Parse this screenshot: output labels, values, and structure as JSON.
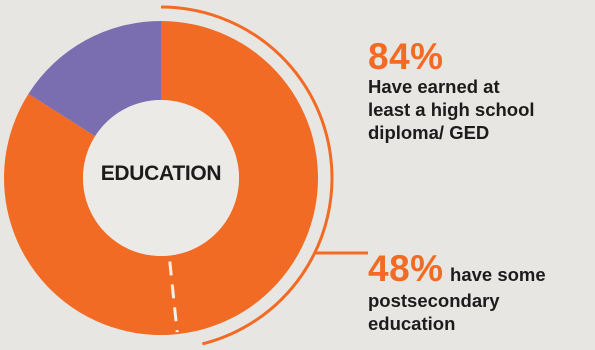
{
  "chart_data": {
    "type": "donut",
    "center_label": "EDUCATION",
    "slices": [
      {
        "label": "Have earned at least a high school diploma/GED",
        "value": 84,
        "color": "#f26b24"
      },
      {
        "label": "",
        "value": 16,
        "color": "#7b6eb0"
      }
    ],
    "sub_segment": {
      "label": "have some postsecondary education",
      "value": 48,
      "note": "portion of the 84% slice, marked by a dashed divider"
    },
    "annotations": [
      {
        "value_text": "84%",
        "text": "Have earned at least a high school diploma/ GED"
      },
      {
        "value_text": "48%",
        "text_inline": "have some",
        "text": "postsecondary education"
      }
    ],
    "colors": {
      "accent": "#f26b24",
      "secondary": "#7b6eb0",
      "background": "#e8e6e3",
      "ring_hole": "#eceae7",
      "text": "#1c1c1c"
    }
  }
}
